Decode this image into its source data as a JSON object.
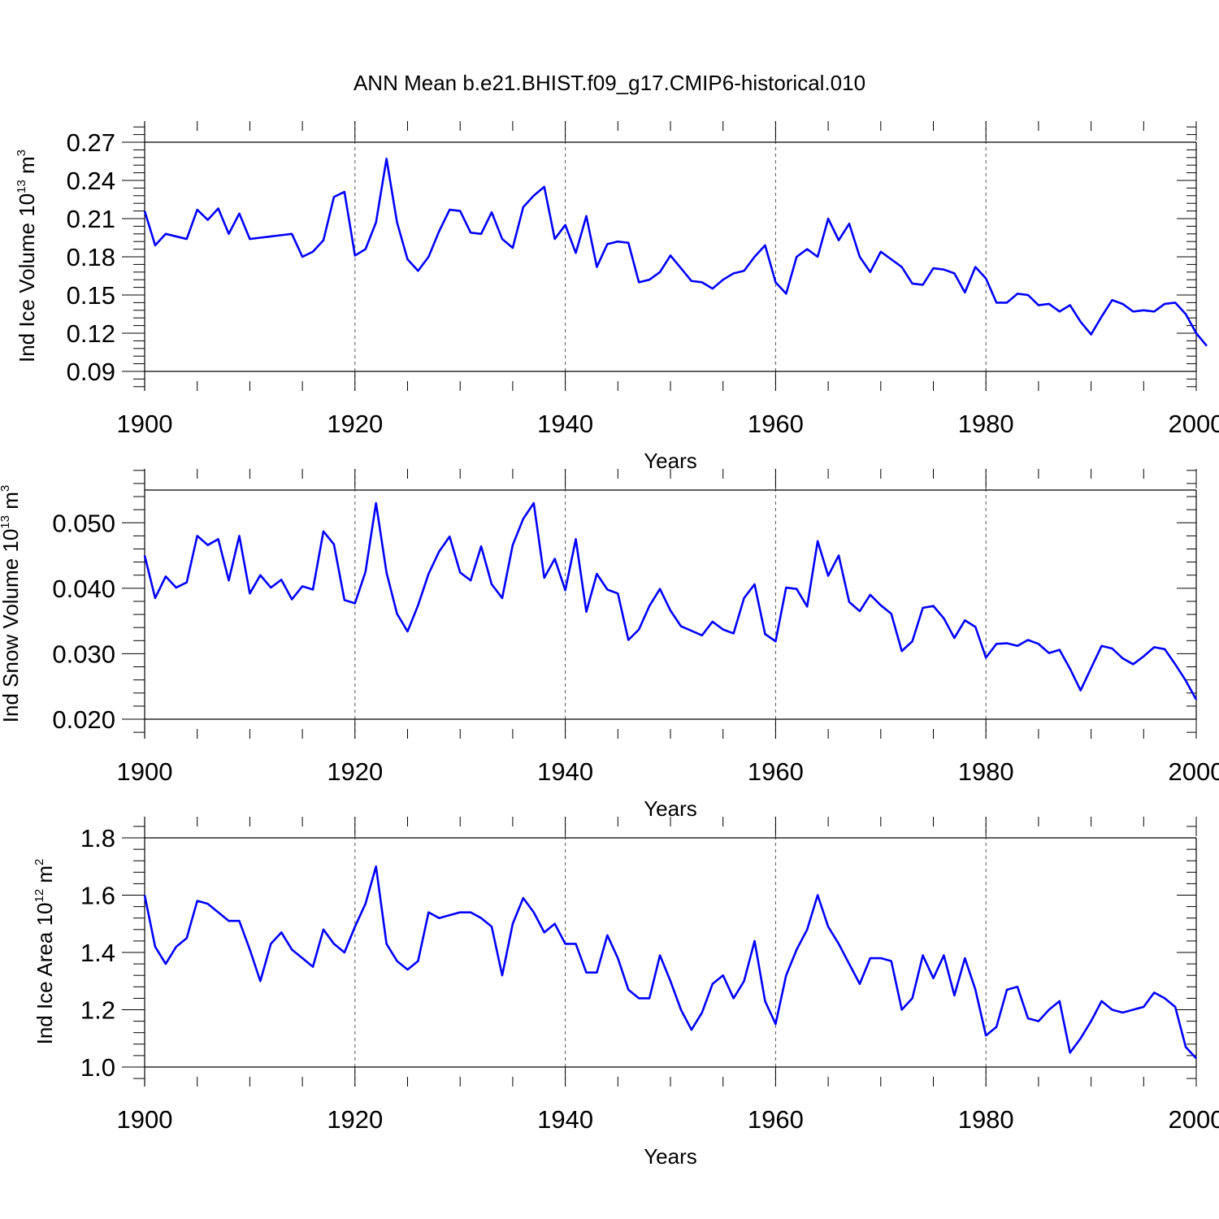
{
  "title": "ANN Mean b.e21.BHIST.f09_g17.CMIP6-historical.010",
  "chart_data": [
    {
      "type": "line",
      "name": "ice-volume",
      "xlabel": "Years",
      "ylabel_main": "Ind Ice Volume 10",
      "ylabel_exp": "13",
      "ylabel_unit": " m",
      "ylabel_unit_exp": "3",
      "xlim": [
        1900,
        2000
      ],
      "ylim": [
        0.09,
        0.27
      ],
      "xticks": [
        1900,
        1920,
        1940,
        1960,
        1980,
        2000
      ],
      "yticks": [
        "0.09",
        "0.12",
        "0.15",
        "0.18",
        "0.21",
        "0.24",
        "0.27"
      ],
      "line_color": "#0000ff",
      "x_start": 1900,
      "values": [
        0.216,
        0.189,
        0.198,
        0.196,
        0.194,
        0.217,
        0.209,
        0.218,
        0.198,
        0.214,
        0.194,
        0.195,
        0.196,
        0.197,
        0.198,
        0.18,
        0.184,
        0.193,
        0.227,
        0.231,
        0.181,
        0.186,
        0.207,
        0.257,
        0.207,
        0.178,
        0.169,
        0.18,
        0.2,
        0.217,
        0.216,
        0.199,
        0.198,
        0.215,
        0.194,
        0.187,
        0.219,
        0.228,
        0.235,
        0.194,
        0.205,
        0.183,
        0.212,
        0.172,
        0.19,
        0.192,
        0.191,
        0.16,
        0.162,
        0.168,
        0.181,
        0.171,
        0.161,
        0.16,
        0.155,
        0.162,
        0.167,
        0.169,
        0.18,
        0.189,
        0.16,
        0.151,
        0.18,
        0.186,
        0.18,
        0.21,
        0.193,
        0.206,
        0.18,
        0.168,
        0.184,
        0.178,
        0.172,
        0.159,
        0.158,
        0.171,
        0.17,
        0.167,
        0.152,
        0.172,
        0.163,
        0.144,
        0.144,
        0.151,
        0.15,
        0.142,
        0.143,
        0.137,
        0.142,
        0.129,
        0.119,
        0.133,
        0.146,
        0.143,
        0.137,
        0.138,
        0.137,
        0.143,
        0.144,
        0.135,
        0.12,
        0.11
      ]
    },
    {
      "type": "line",
      "name": "snow-volume",
      "xlabel": "Years",
      "ylabel_main": "Ind Snow Volume 10",
      "ylabel_exp": "13",
      "ylabel_unit": " m",
      "ylabel_unit_exp": "3",
      "xlim": [
        1900,
        2000
      ],
      "ylim": [
        0.02,
        0.055
      ],
      "xticks": [
        1900,
        1920,
        1940,
        1960,
        1980,
        2000
      ],
      "yticks": [
        "0.020",
        "0.030",
        "0.040",
        "0.050"
      ],
      "line_color": "#0000ff",
      "x_start": 1900,
      "values": [
        0.045,
        0.0385,
        0.0418,
        0.0401,
        0.0409,
        0.048,
        0.0466,
        0.0475,
        0.0412,
        0.048,
        0.0392,
        0.042,
        0.0401,
        0.0413,
        0.0383,
        0.0403,
        0.0398,
        0.0487,
        0.0467,
        0.0382,
        0.0377,
        0.0425,
        0.053,
        0.0424,
        0.0361,
        0.0334,
        0.0374,
        0.0422,
        0.0456,
        0.0479,
        0.0424,
        0.0412,
        0.0464,
        0.0406,
        0.0385,
        0.0466,
        0.0506,
        0.053,
        0.0416,
        0.0445,
        0.0397,
        0.0475,
        0.0364,
        0.0422,
        0.0398,
        0.0392,
        0.0321,
        0.0337,
        0.0373,
        0.0399,
        0.0366,
        0.0342,
        0.0335,
        0.0328,
        0.0349,
        0.0337,
        0.0331,
        0.0385,
        0.0406,
        0.033,
        0.0319,
        0.0401,
        0.0399,
        0.0372,
        0.0472,
        0.0419,
        0.045,
        0.0379,
        0.0365,
        0.039,
        0.0374,
        0.0361,
        0.0304,
        0.0319,
        0.037,
        0.0373,
        0.0354,
        0.0324,
        0.0351,
        0.0341,
        0.0294,
        0.0315,
        0.0316,
        0.0312,
        0.0321,
        0.0315,
        0.0301,
        0.0306,
        0.0277,
        0.0244,
        0.0278,
        0.0312,
        0.0308,
        0.0293,
        0.0284,
        0.0296,
        0.031,
        0.0307,
        0.0284,
        0.0259,
        0.023
      ]
    },
    {
      "type": "line",
      "name": "ice-area",
      "xlabel": "Years",
      "ylabel_main": "Ind Ice Area 10",
      "ylabel_exp": "12",
      "ylabel_unit": " m",
      "ylabel_unit_exp": "2",
      "xlim": [
        1900,
        2000
      ],
      "ylim": [
        1.0,
        1.8
      ],
      "xticks": [
        1900,
        1920,
        1940,
        1960,
        1980,
        2000
      ],
      "yticks": [
        "1.0",
        "1.2",
        "1.4",
        "1.6",
        "1.8"
      ],
      "line_color": "#0000ff",
      "x_start": 1900,
      "values": [
        1.6,
        1.42,
        1.36,
        1.42,
        1.45,
        1.58,
        1.57,
        1.54,
        1.51,
        1.51,
        1.41,
        1.3,
        1.43,
        1.47,
        1.41,
        1.38,
        1.35,
        1.48,
        1.43,
        1.4,
        1.49,
        1.57,
        1.7,
        1.43,
        1.37,
        1.34,
        1.37,
        1.54,
        1.52,
        1.53,
        1.54,
        1.54,
        1.52,
        1.49,
        1.32,
        1.5,
        1.59,
        1.54,
        1.47,
        1.5,
        1.43,
        1.43,
        1.33,
        1.33,
        1.46,
        1.38,
        1.27,
        1.24,
        1.24,
        1.39,
        1.3,
        1.2,
        1.13,
        1.19,
        1.29,
        1.32,
        1.24,
        1.3,
        1.44,
        1.23,
        1.15,
        1.32,
        1.41,
        1.48,
        1.6,
        1.49,
        1.43,
        1.36,
        1.29,
        1.38,
        1.38,
        1.37,
        1.2,
        1.24,
        1.39,
        1.31,
        1.39,
        1.25,
        1.38,
        1.27,
        1.11,
        1.14,
        1.27,
        1.28,
        1.17,
        1.16,
        1.2,
        1.23,
        1.05,
        1.1,
        1.16,
        1.23,
        1.2,
        1.19,
        1.2,
        1.21,
        1.26,
        1.24,
        1.21,
        1.07,
        1.03
      ]
    }
  ]
}
